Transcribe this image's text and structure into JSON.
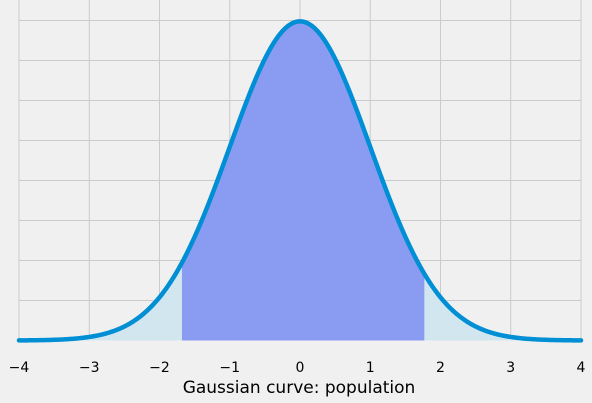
{
  "chart_data": {
    "type": "area",
    "title": "",
    "xlabel": "Gaussian curve: population",
    "ylabel": "",
    "xlim": [
      -4,
      4
    ],
    "ylim": [
      0,
      0.4
    ],
    "grid": true,
    "x_ticks": [
      "−4",
      "−3",
      "−2",
      "−1",
      "0",
      "1",
      "2",
      "3",
      "4"
    ],
    "x_tick_values": [
      -4,
      -3,
      -2,
      -1,
      0,
      1,
      2,
      3,
      4
    ],
    "y_gridlines": [
      0.05,
      0.1,
      0.15,
      0.2,
      0.25,
      0.3,
      0.35,
      0.4
    ],
    "curve": {
      "distribution": "normal",
      "mean": 0,
      "std": 1,
      "color": "#008fd5"
    },
    "highlighted_region": {
      "x_start": -1.68,
      "x_end": 1.77,
      "color": "#8a9cf2"
    },
    "tail_fill_color": "#d2e6f0",
    "colors": {
      "background": "#f0f0f0",
      "grid": "#cbcbcb"
    }
  }
}
